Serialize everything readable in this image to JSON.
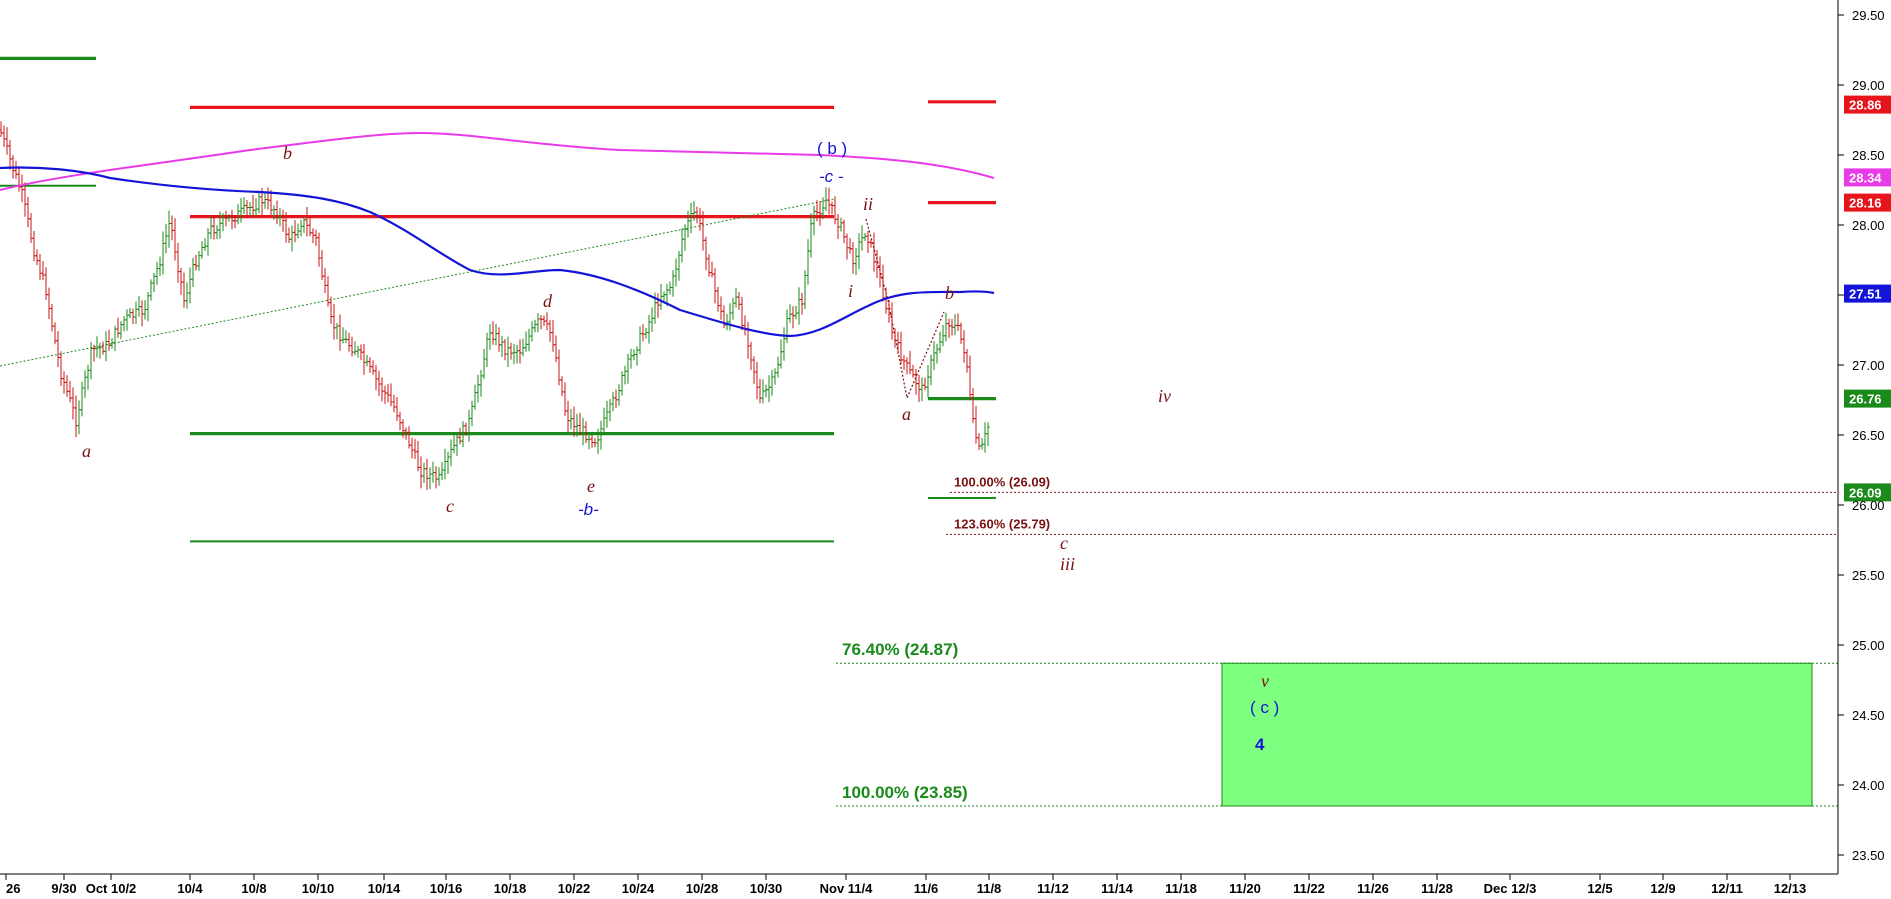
{
  "chart_data": {
    "type": "candlestick",
    "y_axis": {
      "ticks": [
        "29.50",
        "29.00",
        "28.50",
        "28.00",
        "27.50",
        "27.00",
        "26.50",
        "26.00",
        "25.50",
        "25.00",
        "24.50",
        "24.00",
        "23.50"
      ],
      "range": [
        23.35,
        29.6
      ]
    },
    "x_axis": {
      "ticks": [
        "26",
        "9/30",
        "Oct 10/2",
        "10/4",
        "10/8",
        "10/10",
        "10/14",
        "10/16",
        "10/18",
        "10/22",
        "10/24",
        "10/28",
        "10/30",
        "Nov 11/4",
        "11/6",
        "11/8",
        "11/12",
        "11/14",
        "11/18",
        "11/20",
        "11/22",
        "11/26",
        "11/28",
        "Dec 12/3",
        "12/5",
        "12/9",
        "12/11",
        "12/13"
      ]
    },
    "price_badges": [
      {
        "text": "28.86",
        "value": 28.86,
        "color": "#e8141c"
      },
      {
        "text": "28.34",
        "value": 28.34,
        "color": "#e83ae8"
      },
      {
        "text": "28.16",
        "value": 28.16,
        "color": "#e8141c"
      },
      {
        "text": "27.51",
        "value": 27.51,
        "color": "#1414d8"
      },
      {
        "text": "26.76",
        "value": 26.76,
        "color": "#1a8a1a"
      },
      {
        "text": "26.09",
        "value": 26.09,
        "color": "#1a8a1a"
      }
    ],
    "fib_levels": [
      {
        "text": "100.00% (26.09)",
        "value": 26.09,
        "color": "#7a1010"
      },
      {
        "text": "123.60% (25.79)",
        "value": 25.79,
        "color": "#7a1010"
      },
      {
        "text": "76.40% (24.87)",
        "value": 24.87,
        "color": "#1a8a1a"
      },
      {
        "text": "100.00% (23.85)",
        "value": 23.85,
        "color": "#1a8a1a"
      }
    ],
    "horizontal_lines": [
      {
        "value": 28.84,
        "color": "#e8141c",
        "thick": true
      },
      {
        "value": 28.06,
        "color": "#e8141c",
        "thick": true
      },
      {
        "value": 26.51,
        "color": "#1a8a1a",
        "thick": true
      },
      {
        "value": 25.74,
        "color": "#1a8a1a",
        "thick": false
      },
      {
        "value": 29.19,
        "color": "#1a8a1a",
        "thick": true
      },
      {
        "value": 28.28,
        "color": "#1a8a1a",
        "thick": false
      },
      {
        "value": 28.88,
        "color": "#e8141c",
        "thick": true
      },
      {
        "value": 28.16,
        "color": "#e8141c",
        "thick": true
      },
      {
        "value": 26.76,
        "color": "#1a8a1a",
        "thick": true
      },
      {
        "value": 26.05,
        "color": "#1a8a1a",
        "thick": false
      }
    ],
    "target_zone": {
      "top": 24.87,
      "bottom": 23.85,
      "color": "#7fff7f"
    },
    "wave_labels": {
      "maroon": [
        "a",
        "b",
        "c",
        "d",
        "e",
        "a",
        "b",
        "i",
        "ii",
        "c",
        "iii",
        "iv",
        "v"
      ],
      "blue": [
        "( b )",
        "-c -",
        "-b-",
        "( c )",
        "4"
      ]
    },
    "series": [
      {
        "type": "moving-average",
        "color": "#e83ae8",
        "end_value": 28.34
      },
      {
        "type": "moving-average",
        "color": "#1414d8",
        "end_value": 27.51
      },
      {
        "type": "price",
        "colors": {
          "up": "#1a8a1a",
          "down": "#c81414"
        }
      }
    ]
  }
}
